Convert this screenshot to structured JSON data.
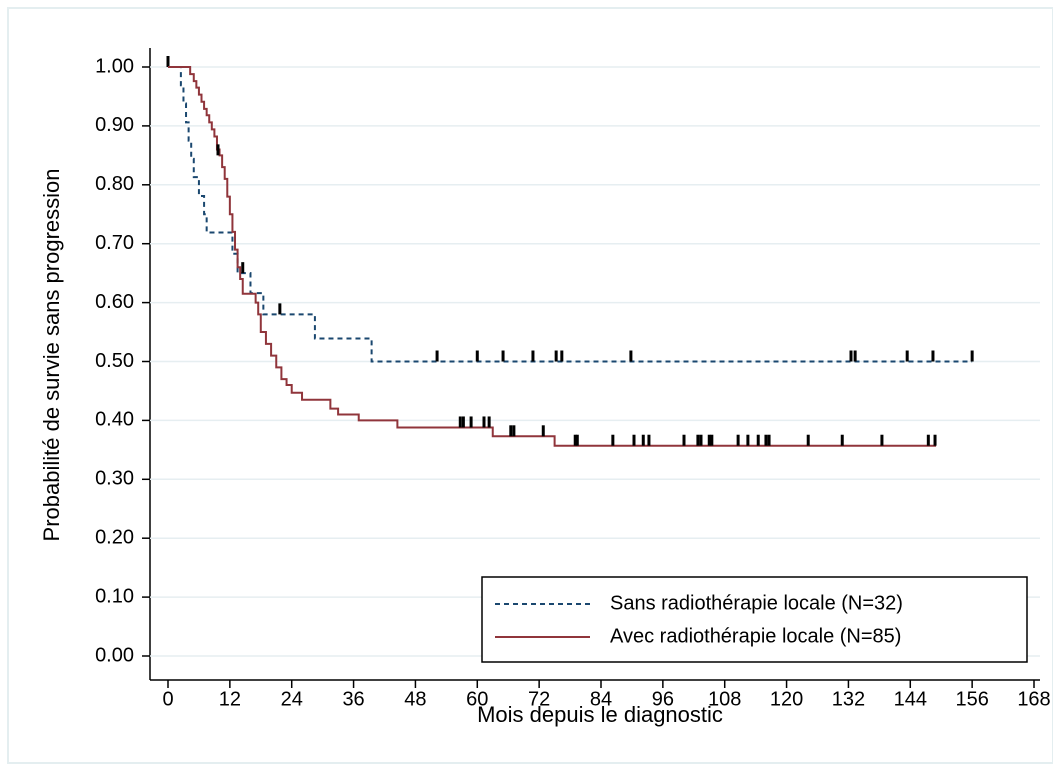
{
  "chart_data": {
    "type": "step",
    "xlabel": "Mois depuis le diagnostic",
    "ylabel": "Probabilité de survie sans progression",
    "xlim": [
      0,
      168
    ],
    "xticks": [
      0,
      12,
      24,
      36,
      48,
      60,
      72,
      84,
      96,
      108,
      120,
      132,
      144,
      156,
      168
    ],
    "ylim": [
      0,
      1
    ],
    "yticks": [
      {
        "value": 0,
        "label": "0.00"
      },
      {
        "value": 0.1,
        "label": "0.10"
      },
      {
        "value": 0.2,
        "label": "0.20"
      },
      {
        "value": 0.3,
        "label": "0.30"
      },
      {
        "value": 0.4,
        "label": "0.40"
      },
      {
        "value": 0.5,
        "label": "0.50"
      },
      {
        "value": 0.6,
        "label": "0.60"
      },
      {
        "value": 0.7,
        "label": "0.70"
      },
      {
        "value": 0.8,
        "label": "0.80"
      },
      {
        "value": 0.9,
        "label": "0.90"
      },
      {
        "value": 1,
        "label": "1.00"
      }
    ],
    "grid": true,
    "legend": "lower right",
    "series": [
      {
        "name": "Sans radiothérapie locale (N=32)",
        "color": "#1a476f",
        "dashed": true,
        "x": [
          0,
          2.5,
          3,
          3.5,
          4,
          4.5,
          5,
          6,
          7,
          7.5,
          12.5,
          13.5,
          16,
          18.5,
          28.5,
          39.5,
          156
        ],
        "values": [
          1,
          0.969,
          0.938,
          0.906,
          0.875,
          0.844,
          0.813,
          0.781,
          0.75,
          0.719,
          0.683,
          0.65,
          0.616,
          0.58,
          0.539,
          0.5,
          0.5
        ],
        "censored_x": [
          0,
          14.5,
          21.7,
          52.2,
          60,
          65,
          70.8,
          75.3,
          76.4,
          89.8,
          132.5,
          133.3,
          143.4,
          148.4,
          156
        ],
        "censored_values": [
          1,
          0.65,
          0.58,
          0.5,
          0.5,
          0.5,
          0.5,
          0.5,
          0.5,
          0.5,
          0.5,
          0.5,
          0.5,
          0.5,
          0.5
        ]
      },
      {
        "name": "Avec radiothérapie locale (N=85)",
        "color": "#90353b",
        "dashed": false,
        "x": [
          0,
          4.3,
          5,
          5.5,
          6,
          6.5,
          7,
          7.5,
          8,
          8.5,
          9,
          9.5,
          10,
          10.5,
          11,
          11.5,
          12,
          12.5,
          13,
          13.5,
          14,
          14.5,
          17,
          17.5,
          18,
          19,
          20,
          21,
          22,
          23,
          24,
          26,
          31.5,
          33,
          37,
          44.5,
          63,
          75,
          149
        ],
        "values": [
          1,
          0.988,
          0.976,
          0.965,
          0.953,
          0.941,
          0.929,
          0.918,
          0.906,
          0.894,
          0.882,
          0.86,
          0.85,
          0.83,
          0.81,
          0.78,
          0.75,
          0.72,
          0.69,
          0.66,
          0.64,
          0.615,
          0.6,
          0.58,
          0.55,
          0.53,
          0.51,
          0.49,
          0.47,
          0.46,
          0.447,
          0.435,
          0.42,
          0.41,
          0.4,
          0.388,
          0.373,
          0.357,
          0.357
        ],
        "censored_x": [
          9.7,
          56.7,
          57.3,
          58.8,
          61.3,
          62.3,
          66.5,
          67.1,
          72.8,
          79,
          79.4,
          86.3,
          90.4,
          92.2,
          93.3,
          100.1,
          102.8,
          103.4,
          105,
          105.5,
          110.6,
          112.5,
          114.5,
          116,
          116.6,
          124.2,
          130.8,
          138.5,
          147.5,
          148.8
        ],
        "censored_values": [
          0.85,
          0.388,
          0.388,
          0.388,
          0.388,
          0.388,
          0.373,
          0.373,
          0.373,
          0.357,
          0.357,
          0.357,
          0.357,
          0.357,
          0.357,
          0.357,
          0.357,
          0.357,
          0.357,
          0.357,
          0.357,
          0.357,
          0.357,
          0.357,
          0.357,
          0.357,
          0.357,
          0.357,
          0.357,
          0.357
        ]
      }
    ]
  }
}
